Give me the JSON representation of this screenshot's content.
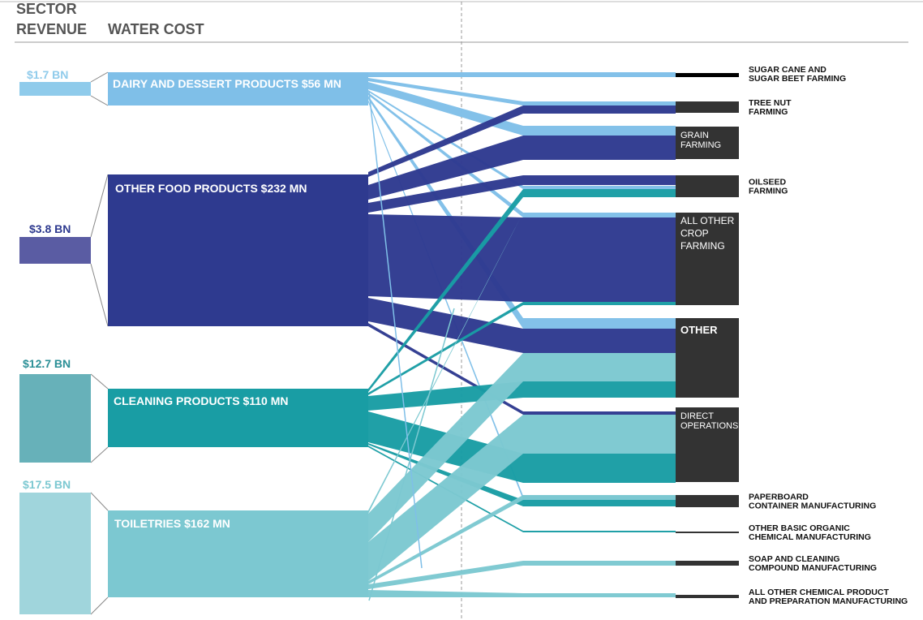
{
  "header": {
    "sector_revenue": [
      "SECTOR",
      "REVENUE"
    ],
    "water_cost": "WATER COST"
  },
  "colors": {
    "dairy": "#7fbfe8",
    "food": "#2e3a8f",
    "cleaning": "#199da4",
    "toiletries": "#7cc8d1",
    "rev_dairy": "#8fcbeb",
    "rev_food": "#5a5ca3",
    "rev_cleaning": "#67b1b9",
    "rev_toiletries": "#a0d5dc",
    "target": "#333333"
  },
  "sectors": [
    {
      "id": "dairy",
      "revenue": "$1.7 BN",
      "label": "DAIRY AND DESSERT PRODUCTS $56 MN"
    },
    {
      "id": "food",
      "revenue": "$3.8 BN",
      "label": "OTHER FOOD PRODUCTS  $232 MN"
    },
    {
      "id": "cleaning",
      "revenue": "$12.7 BN",
      "label": "CLEANING PRODUCTS  $110 MN"
    },
    {
      "id": "toiletries",
      "revenue": "$17.5 BN",
      "label": "TOILETRIES  $162 MN"
    }
  ],
  "targets": [
    {
      "id": "sugar",
      "lines": [
        "SUGAR CANE AND",
        "SUGAR BEET FARMING"
      ],
      "label_inside": false
    },
    {
      "id": "treenut",
      "lines": [
        "TREE NUT",
        "FARMING"
      ],
      "label_inside": false
    },
    {
      "id": "grain",
      "lines": [
        "GRAIN",
        "FARMING"
      ],
      "label_inside": true
    },
    {
      "id": "oilseed",
      "lines": [
        "OILSEED",
        "FARMING"
      ],
      "label_inside": false
    },
    {
      "id": "allcrop",
      "lines": [
        "ALL OTHER",
        "CROP",
        "FARMING"
      ],
      "label_inside": true
    },
    {
      "id": "other",
      "lines": [
        "OTHER"
      ],
      "label_inside": true
    },
    {
      "id": "direct",
      "lines": [
        "DIRECT",
        "OPERATIONS"
      ],
      "label_inside": true
    },
    {
      "id": "paperboard",
      "lines": [
        "PAPERBOARD",
        "CONTAINER MANUFACTURING"
      ],
      "label_inside": false
    },
    {
      "id": "organic",
      "lines": [
        "OTHER BASIC ORGANIC",
        "CHEMICAL MANUFACTURING"
      ],
      "label_inside": false
    },
    {
      "id": "soap",
      "lines": [
        "SOAP AND CLEANING",
        "COMPOUND MANUFACTURING"
      ],
      "label_inside": false
    },
    {
      "id": "allchem",
      "lines": [
        "ALL OTHER CHEMICAL PRODUCT",
        "AND PREPARATION MANUFACTURING"
      ],
      "label_inside": false
    }
  ]
}
